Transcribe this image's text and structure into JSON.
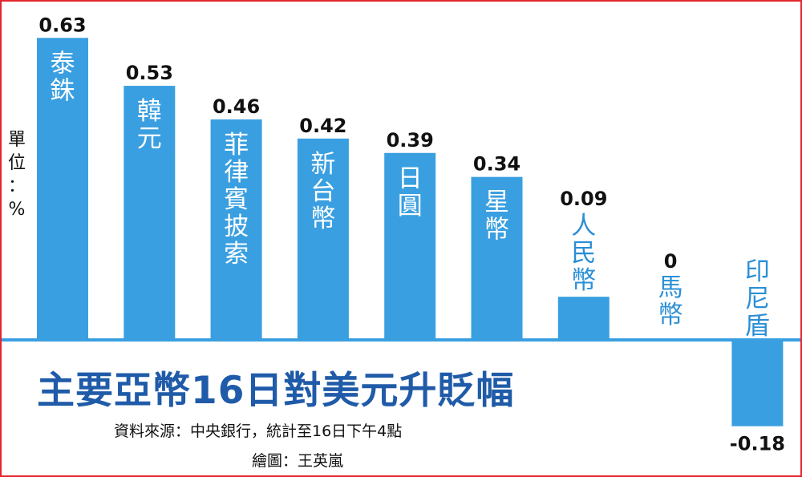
{
  "chart_data": {
    "type": "bar",
    "title": "主要亞幣16日對美元升貶幅",
    "unit_label": "單位：%",
    "categories": [
      "泰銖",
      "韓元",
      "菲律賓披索",
      "新台幣",
      "日圓",
      "星幣",
      "人民幣",
      "馬幣",
      "印尼盾"
    ],
    "values": [
      0.63,
      0.53,
      0.46,
      0.42,
      0.39,
      0.34,
      0.09,
      0,
      -0.18
    ],
    "value_labels": [
      "0.63",
      "0.53",
      "0.46",
      "0.42",
      "0.39",
      "0.34",
      "0.09",
      "0",
      "-0.18"
    ],
    "ylim": [
      -0.18,
      0.63
    ],
    "grid": false,
    "legend": "none",
    "colors": {
      "bar": "#3a9fe0",
      "axis": "#3a9fe0",
      "label_inside": "#ffffff",
      "label_outside": "#2b8fd6",
      "title": "#1f5ba8",
      "border": "#e3262f"
    }
  },
  "notes": {
    "source": "資料來源：中央銀行，統計至16日下午4點",
    "credit": "繪圖：王英嵐"
  }
}
